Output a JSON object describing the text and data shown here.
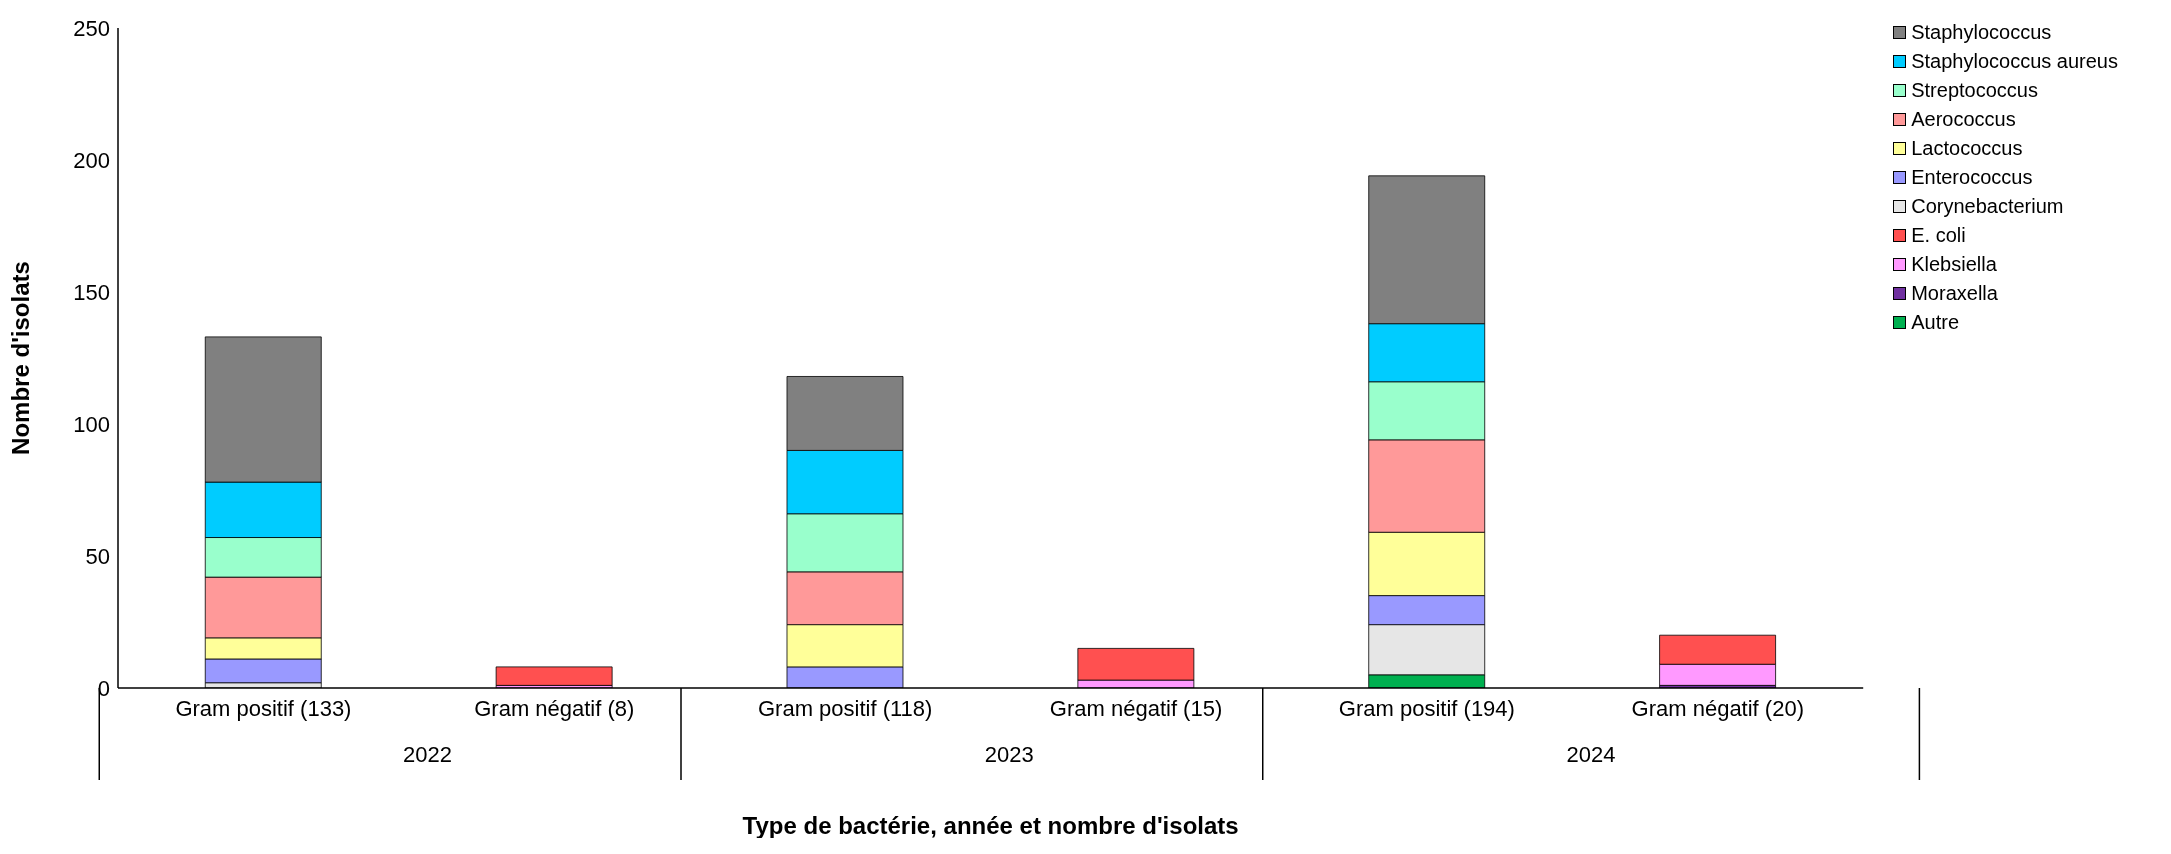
{
  "chart_data": {
    "type": "bar",
    "stacked": true,
    "xlabel": "Type de bactérie, année et nombre d'isolats",
    "ylabel": "Nombre d'isolats",
    "categories": [
      "Gram positif (133)",
      "Gram négatif (8)",
      "Gram positif (118)",
      "Gram négatif (15)",
      "Gram positif (194)",
      "Gram négatif (20)"
    ],
    "annotations": [
      "2022",
      "2023",
      "2024"
    ],
    "series": [
      {
        "name": "Autre",
        "color": "#00b050",
        "values": [
          null,
          null,
          null,
          null,
          5,
          null
        ]
      },
      {
        "name": "Moraxella",
        "color": "#7030a0",
        "values": [
          null,
          null,
          null,
          null,
          null,
          1
        ]
      },
      {
        "name": "Klebsiella",
        "color": "#ff99ff",
        "values": [
          null,
          1,
          null,
          3,
          null,
          8
        ]
      },
      {
        "name": "E. coli",
        "color": "#ff5050",
        "values": [
          null,
          7,
          null,
          12,
          null,
          11
        ]
      },
      {
        "name": "Corynebacterium",
        "color": "#e6e6e6",
        "values": [
          2,
          null,
          null,
          null,
          19,
          null
        ]
      },
      {
        "name": "Enterococcus",
        "color": "#9999ff",
        "values": [
          9,
          null,
          8,
          null,
          11,
          null
        ]
      },
      {
        "name": "Lactococcus",
        "color": "#ffff99",
        "values": [
          8,
          null,
          16,
          null,
          24,
          null
        ]
      },
      {
        "name": "Aerococcus",
        "color": "#ff9999",
        "values": [
          23,
          null,
          20,
          null,
          35,
          null
        ]
      },
      {
        "name": "Streptococcus",
        "color": "#99ffcc",
        "values": [
          15,
          null,
          22,
          null,
          22,
          null
        ]
      },
      {
        "name": "Staphylococcus aureus",
        "color": "#00ccff",
        "values": [
          21,
          null,
          24,
          null,
          22,
          null
        ]
      },
      {
        "name": "Staphylococcus",
        "color": "#808080",
        "values": [
          55,
          null,
          28,
          null,
          56,
          null
        ]
      }
    ],
    "ylim": [
      0,
      250
    ],
    "yticks": [
      0,
      50,
      100,
      150,
      200,
      250
    ],
    "grid": false,
    "legend": "top right"
  }
}
